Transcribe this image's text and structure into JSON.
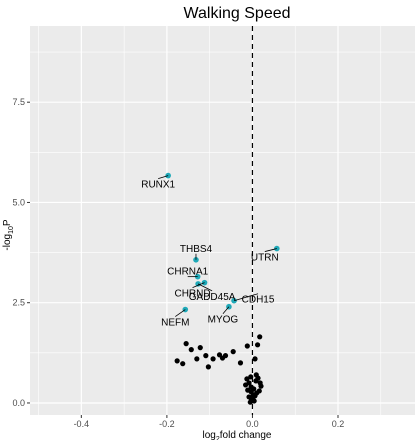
{
  "chart_data": {
    "type": "scatter",
    "title": "Walking Speed",
    "xlabel": {
      "prefix": "log",
      "sub": "2",
      "suffix": "fold change"
    },
    "ylabel": {
      "prefix": "-log",
      "sub": "10",
      "suffix": "P"
    },
    "xlim": [
      -0.52,
      0.38
    ],
    "ylim": [
      -0.3,
      9.4
    ],
    "x_ticks": [
      -0.4,
      -0.2,
      0.0,
      0.2
    ],
    "x_tick_labels": [
      "-0.4",
      "-0.2",
      "0.0",
      "0.2"
    ],
    "y_ticks": [
      0.0,
      2.5,
      5.0,
      7.5
    ],
    "y_tick_labels": [
      "0.0",
      "2.5",
      "5.0",
      "7.5"
    ],
    "grid": true,
    "reference_line": {
      "x": 0,
      "style": "dashed"
    },
    "colors": {
      "panel": "#ebebeb",
      "grid": "#ffffff",
      "highlight": "#1fa9b8",
      "point": "#000000"
    },
    "highlighted": [
      {
        "gene": "RUNX1",
        "x": -0.197,
        "y": 5.67
      },
      {
        "gene": "UTRN",
        "x": 0.057,
        "y": 3.85
      },
      {
        "gene": "THBS4",
        "x": -0.132,
        "y": 3.57
      },
      {
        "gene": "CHRNA1",
        "x": -0.128,
        "y": 3.15
      },
      {
        "gene": "CHRND",
        "x": -0.112,
        "y": 3.0
      },
      {
        "gene": "GADD45A",
        "x": -0.127,
        "y": 2.97
      },
      {
        "gene": "CDH15",
        "x": -0.043,
        "y": 2.55
      },
      {
        "gene": "MYOG",
        "x": -0.055,
        "y": 2.4
      },
      {
        "gene": "NEFM",
        "x": -0.157,
        "y": 2.33
      }
    ],
    "points": [
      {
        "x": -0.155,
        "y": 1.48
      },
      {
        "x": -0.143,
        "y": 1.33
      },
      {
        "x": -0.122,
        "y": 1.38
      },
      {
        "x": -0.109,
        "y": 1.18
      },
      {
        "x": -0.092,
        "y": 1.1
      },
      {
        "x": -0.077,
        "y": 1.2
      },
      {
        "x": -0.063,
        "y": 1.18
      },
      {
        "x": -0.045,
        "y": 1.28
      },
      {
        "x": -0.028,
        "y": 1.0
      },
      {
        "x": -0.176,
        "y": 1.05
      },
      {
        "x": -0.163,
        "y": 0.98
      },
      {
        "x": -0.13,
        "y": 1.1
      },
      {
        "x": -0.103,
        "y": 0.9
      },
      {
        "x": -0.07,
        "y": 1.12
      },
      {
        "x": -0.012,
        "y": 1.42
      },
      {
        "x": 0.017,
        "y": 1.65
      },
      {
        "x": 0.012,
        "y": 1.45
      },
      {
        "x": 0.006,
        "y": 1.1
      },
      {
        "x": -0.013,
        "y": 0.6
      },
      {
        "x": -0.008,
        "y": 0.5
      },
      {
        "x": -0.003,
        "y": 0.4
      },
      {
        "x": 0.003,
        "y": 0.35
      },
      {
        "x": 0.008,
        "y": 0.55
      },
      {
        "x": 0.013,
        "y": 0.62
      },
      {
        "x": 0.018,
        "y": 0.5
      },
      {
        "x": 0.02,
        "y": 0.42
      },
      {
        "x": 0.016,
        "y": 0.3
      },
      {
        "x": 0.01,
        "y": 0.25
      },
      {
        "x": 0.002,
        "y": 0.2
      },
      {
        "x": -0.003,
        "y": 0.28
      },
      {
        "x": -0.008,
        "y": 0.15
      },
      {
        "x": -0.002,
        "y": 0.08
      },
      {
        "x": 0.004,
        "y": 0.05
      },
      {
        "x": -0.005,
        "y": 0.02
      },
      {
        "x": 0.001,
        "y": 0.12
      },
      {
        "x": 0.006,
        "y": 0.18
      },
      {
        "x": -0.011,
        "y": 0.32
      },
      {
        "x": -0.016,
        "y": 0.45
      },
      {
        "x": 0.009,
        "y": 0.7
      },
      {
        "x": -0.004,
        "y": 0.65
      }
    ]
  }
}
